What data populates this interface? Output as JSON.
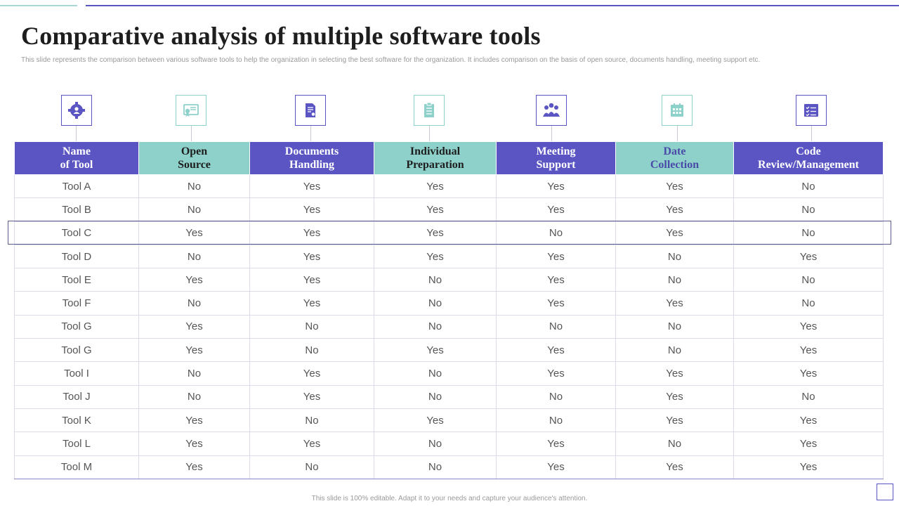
{
  "slide": {
    "title": "Comparative analysis of multiple software tools",
    "subtitle": "This slide represents the comparison between various software tools to help the organization in  selecting the best software for the organization. It includes comparison on the basis of open source, documents handling,  meeting support etc.",
    "footer": "This slide is 100% editable.  Adapt it to your needs and capture your audience's attention."
  },
  "colors": {
    "accent": "#5a55c2",
    "teal": "#8ed1cb"
  },
  "icons": [
    "settings-people-icon",
    "certificate-icon",
    "document-icon",
    "checklist-icon",
    "team-meeting-icon",
    "calendar-icon",
    "task-list-icon"
  ],
  "table": {
    "headers": [
      [
        "Name",
        "of Tool"
      ],
      [
        "Open",
        "Source"
      ],
      [
        "Documents",
        "Handling"
      ],
      [
        "Individual",
        "Preparation"
      ],
      [
        "Meeting",
        "Support"
      ],
      [
        "Date",
        "Collection"
      ],
      [
        "Code",
        "Review/Management"
      ]
    ],
    "rows": [
      [
        "Tool A",
        "No",
        "Yes",
        "Yes",
        "Yes",
        "Yes",
        "No"
      ],
      [
        "Tool B",
        "No",
        "Yes",
        "Yes",
        "Yes",
        "Yes",
        "No"
      ],
      [
        "Tool C",
        "Yes",
        "Yes",
        "Yes",
        "No",
        "Yes",
        "No"
      ],
      [
        "Tool D",
        "No",
        "Yes",
        "Yes",
        "Yes",
        "No",
        "Yes"
      ],
      [
        "Tool E",
        "Yes",
        "Yes",
        "No",
        "Yes",
        "No",
        "No"
      ],
      [
        "Tool F",
        "No",
        "Yes",
        "No",
        "Yes",
        "Yes",
        "No"
      ],
      [
        "Tool G",
        "Yes",
        "No",
        "No",
        "No",
        "No",
        "Yes"
      ],
      [
        "Tool G",
        "Yes",
        "No",
        "Yes",
        "Yes",
        "No",
        "Yes"
      ],
      [
        "Tool I",
        "No",
        "Yes",
        "No",
        "Yes",
        "Yes",
        "Yes"
      ],
      [
        "Tool J",
        "No",
        "Yes",
        "No",
        "No",
        "Yes",
        "No"
      ],
      [
        "Tool K",
        "Yes",
        "No",
        "Yes",
        "No",
        "Yes",
        "Yes"
      ],
      [
        "Tool L",
        "Yes",
        "Yes",
        "No",
        "Yes",
        "No",
        "Yes"
      ],
      [
        "Tool M",
        "Yes",
        "No",
        "No",
        "Yes",
        "Yes",
        "Yes"
      ]
    ]
  }
}
